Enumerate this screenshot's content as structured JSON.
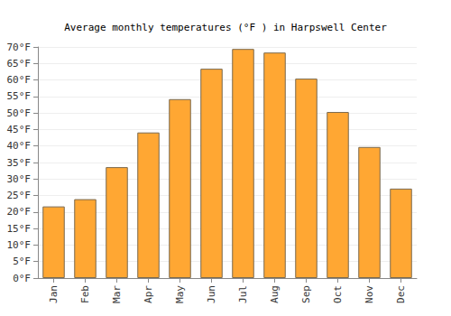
{
  "chart_data": {
    "type": "bar",
    "title": "Average monthly temperatures (°F ) in Harpswell Center",
    "categories": [
      "Jan",
      "Feb",
      "Mar",
      "Apr",
      "May",
      "Jun",
      "Jul",
      "Aug",
      "Sep",
      "Oct",
      "Nov",
      "Dec"
    ],
    "values": [
      21.7,
      23.9,
      33.6,
      44.1,
      54.2,
      63.4,
      69.4,
      68.3,
      60.4,
      50.3,
      39.7,
      27.1
    ],
    "color": "#ffa733",
    "ylim": [
      0,
      70
    ],
    "yticks": [
      {
        "value": 0,
        "label": "0°F"
      },
      {
        "value": 5,
        "label": "5°F"
      },
      {
        "value": 10,
        "label": "10°F"
      },
      {
        "value": 15,
        "label": "15°F"
      },
      {
        "value": 20,
        "label": "20°F"
      },
      {
        "value": 25,
        "label": "25°F"
      },
      {
        "value": 30,
        "label": "30°F"
      },
      {
        "value": 35,
        "label": "35°F"
      },
      {
        "value": 40,
        "label": "40°F"
      },
      {
        "value": 45,
        "label": "45°F"
      },
      {
        "value": 50,
        "label": "50°F"
      },
      {
        "value": 55,
        "label": "55°F"
      },
      {
        "value": 60,
        "label": "60°F"
      },
      {
        "value": 65,
        "label": "65°F"
      },
      {
        "value": 70,
        "label": "70°F"
      }
    ],
    "grid": true
  }
}
